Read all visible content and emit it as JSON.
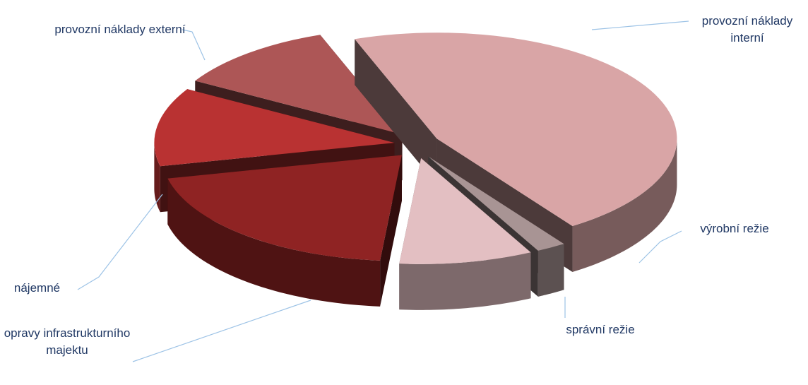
{
  "chart_data": {
    "type": "pie3d",
    "categories": [
      "provozní náklady interní",
      "výrobní režie",
      "správní režie",
      "opravy infrastrukturního majektu",
      "nájemné",
      "provozní náklady externí"
    ],
    "values": [
      46,
      2,
      9,
      20,
      12,
      11
    ],
    "colors": [
      "#d9a5a6",
      "#a89494",
      "#e3bfc2",
      "#8f2323",
      "#b93232",
      "#ad5656"
    ]
  }
}
